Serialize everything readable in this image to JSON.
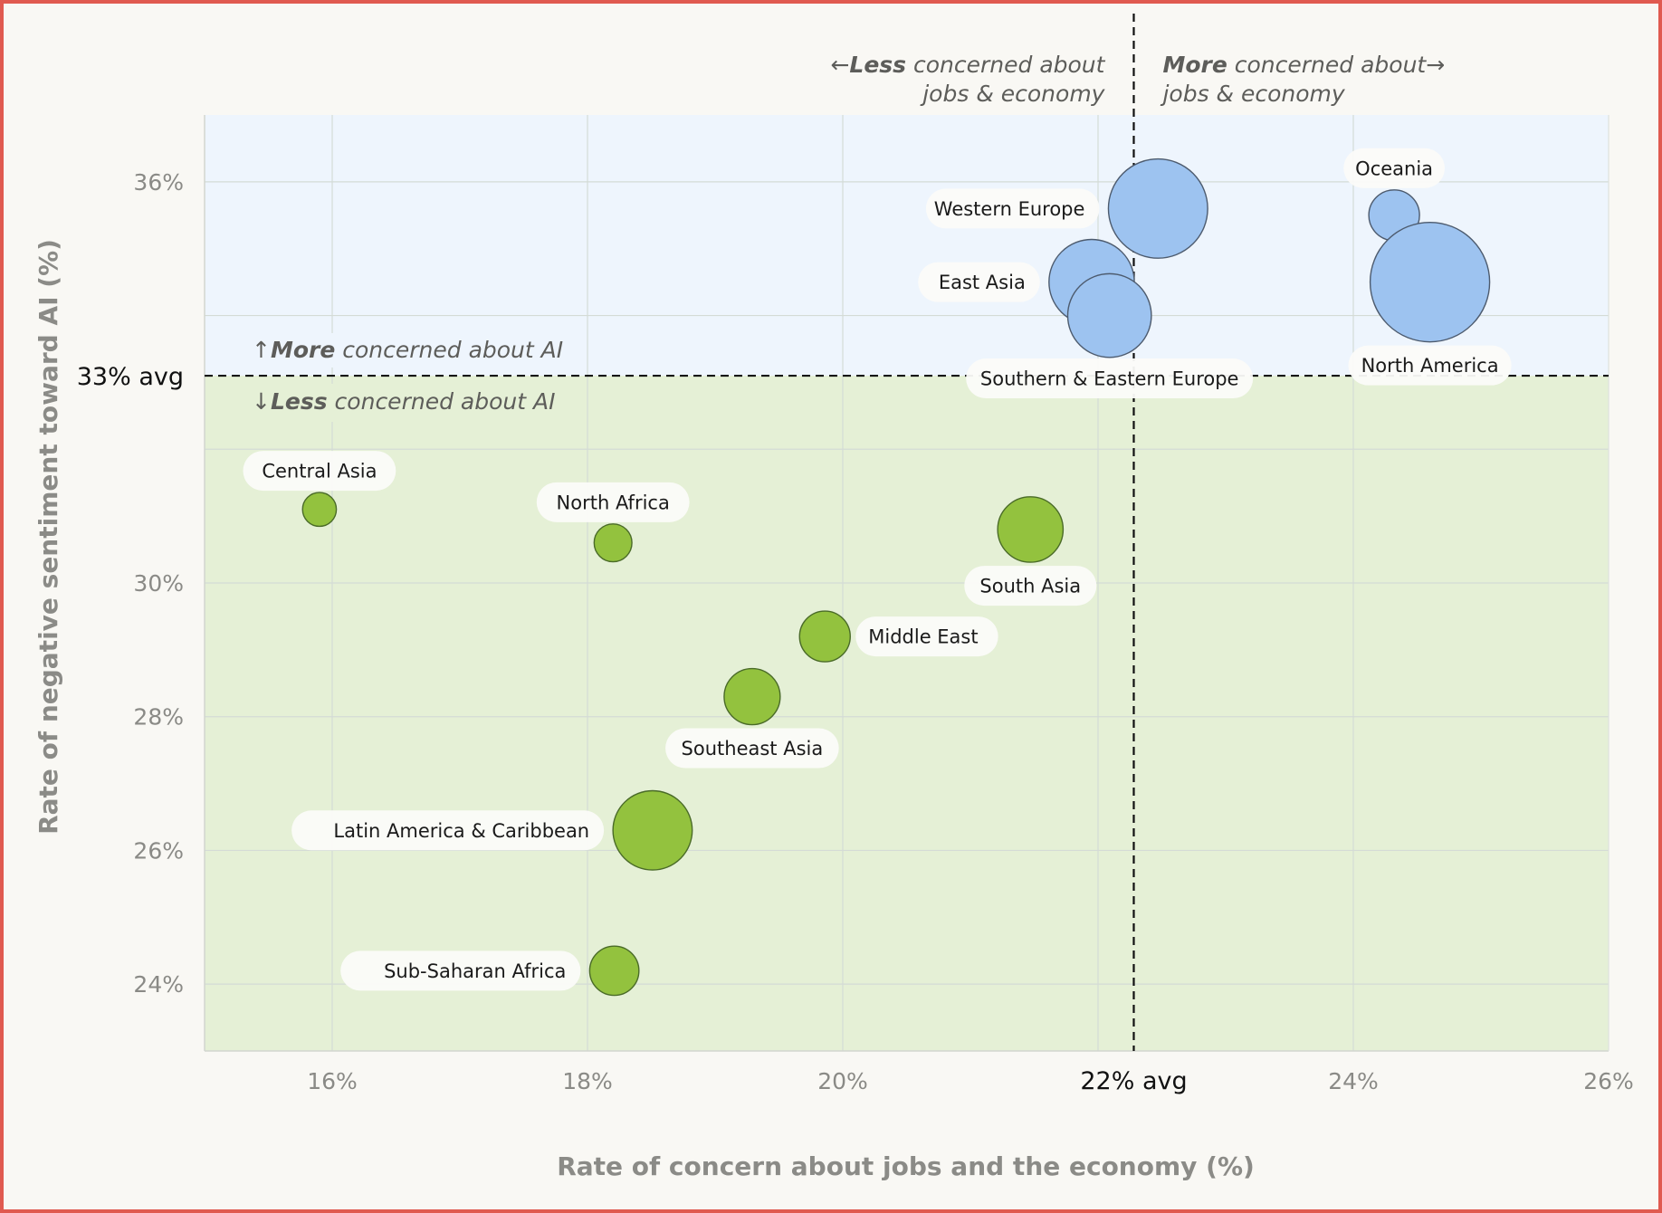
{
  "chart_data": {
    "type": "scatter",
    "subtype": "bubble",
    "xlabel": "Rate of concern about jobs and the economy (%)",
    "ylabel": "Rate of negative sentiment toward AI (%)",
    "xlim": [
      15,
      26
    ],
    "ylim": [
      23,
      37
    ],
    "x_ticks": [
      16,
      18,
      20,
      22,
      24,
      26
    ],
    "x_tick_labels": [
      "16%",
      "18%",
      "20%",
      "22%",
      "24%",
      "26%"
    ],
    "y_ticks": [
      24,
      26,
      28,
      30,
      32,
      34,
      36
    ],
    "y_tick_labels": [
      "24%",
      "26%",
      "28%",
      "30%",
      "",
      "",
      "36%"
    ],
    "grid": true,
    "x_avg": {
      "value": 22.28,
      "label": "22% avg"
    },
    "y_avg": {
      "value": 33.1,
      "label": "33% avg"
    },
    "annotations": {
      "left": {
        "arrow": "←",
        "bold": "Less",
        "rest": " concerned about",
        "line2": "jobs & economy"
      },
      "right": {
        "bold": "More",
        "rest": " concerned about",
        "arrow": "→",
        "line2": "jobs & economy"
      },
      "up": {
        "arrow": "↑",
        "bold": "More",
        "rest": " concerned about AI"
      },
      "down": {
        "arrow": "↓",
        "bold": "Less",
        "rest": " concerned about AI"
      }
    },
    "colors": {
      "above_avg_fill": "#9dc3f0",
      "above_avg_stroke": "#4d5b6e",
      "below_avg_fill": "#93c23e",
      "below_avg_stroke": "#4a6b28",
      "above_region": "#eef5fd",
      "below_region": "#e5f0d6",
      "frame": "#e05a50"
    },
    "points": [
      {
        "name": "Western Europe",
        "x": 22.47,
        "y": 35.6,
        "size": 69,
        "group": "above",
        "label_pos": "left"
      },
      {
        "name": "Oceania",
        "x": 24.32,
        "y": 35.5,
        "size": 18,
        "group": "above",
        "label_pos": "top"
      },
      {
        "name": "East Asia",
        "x": 21.95,
        "y": 34.5,
        "size": 51,
        "group": "above",
        "label_pos": "left"
      },
      {
        "name": "North America",
        "x": 24.6,
        "y": 34.5,
        "size": 100,
        "group": "above",
        "label_pos": "bottom"
      },
      {
        "name": "Southern & Eastern Europe",
        "x": 22.09,
        "y": 34.0,
        "size": 49,
        "group": "above",
        "label_pos": "bottom"
      },
      {
        "name": "Central Asia",
        "x": 15.9,
        "y": 31.1,
        "size": 8,
        "group": "below",
        "label_pos": "top"
      },
      {
        "name": "North Africa",
        "x": 18.2,
        "y": 30.6,
        "size": 10,
        "group": "below",
        "label_pos": "top"
      },
      {
        "name": "South Asia",
        "x": 21.47,
        "y": 30.8,
        "size": 30,
        "group": "below",
        "label_pos": "bottom"
      },
      {
        "name": "Middle East",
        "x": 19.86,
        "y": 29.2,
        "size": 18,
        "group": "below",
        "label_pos": "right"
      },
      {
        "name": "Southeast Asia",
        "x": 19.29,
        "y": 28.3,
        "size": 22,
        "group": "below",
        "label_pos": "bottom"
      },
      {
        "name": "Latin America & Caribbean",
        "x": 18.51,
        "y": 26.3,
        "size": 44,
        "group": "below",
        "label_pos": "left"
      },
      {
        "name": "Sub-Saharan Africa",
        "x": 18.21,
        "y": 24.2,
        "size": 17,
        "group": "below",
        "label_pos": "left"
      }
    ]
  }
}
